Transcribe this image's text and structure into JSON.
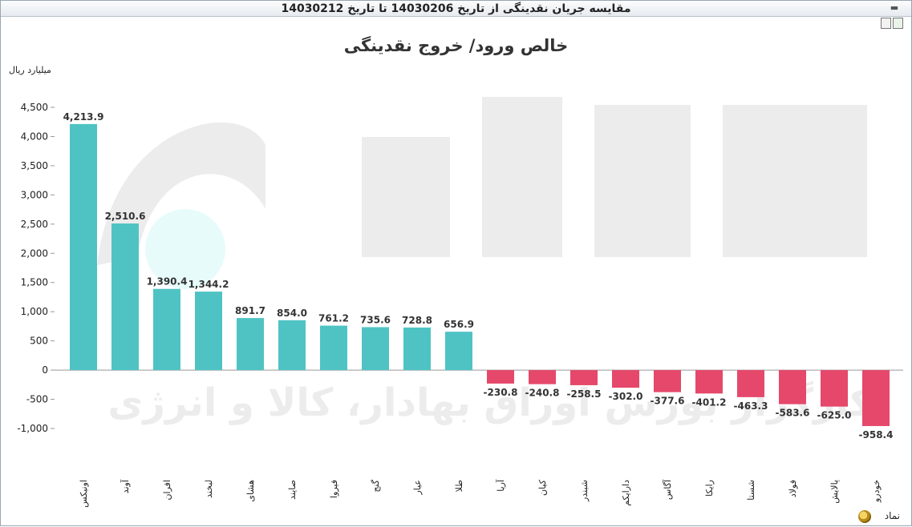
{
  "window": {
    "title": "مقایسه جریان نقدینگی از تاریخ 14030206 تا تاریخ 14030212",
    "toolbar_icons": [
      "print-icon",
      "excel-export-icon"
    ],
    "controls": [
      "minimize-icon"
    ]
  },
  "footer": {
    "label": "نماد",
    "icon": "symbol-search-icon"
  },
  "colors": {
    "positive": "#4fc3c4",
    "negative": "#e5486a",
    "zero_line": "#999999",
    "watermark": "#ececec"
  },
  "chart_data": {
    "type": "bar",
    "title": "خالص ورود/ خروج نقدینگی",
    "ylabel": "میلیارد ریال",
    "xlabel": "",
    "ylim": [
      -1000,
      4500
    ],
    "yticks": [
      {
        "value": 4500,
        "label": "4,500"
      },
      {
        "value": 4000,
        "label": "4,000"
      },
      {
        "value": 3500,
        "label": "3,500"
      },
      {
        "value": 3000,
        "label": "3,000"
      },
      {
        "value": 2500,
        "label": "2,500"
      },
      {
        "value": 2000,
        "label": "2,000"
      },
      {
        "value": 1500,
        "label": "1,500"
      },
      {
        "value": 1000,
        "label": "1,000"
      },
      {
        "value": 500,
        "label": "500"
      },
      {
        "value": 0,
        "label": "0"
      },
      {
        "value": -500,
        "label": "-500"
      },
      {
        "value": -1000,
        "label": "-1,000"
      }
    ],
    "grid": false,
    "categories": [
      "اونیکس",
      "آوند",
      "افران",
      "لبخند",
      "هشای",
      "صایند",
      "فیروا",
      "گنج",
      "عیار",
      "طلا",
      "آریا",
      "کیان",
      "شبندر",
      "دارایکم",
      "آگاس",
      "رایکا",
      "شستا",
      "فولاد",
      "پالایش",
      "خودرو"
    ],
    "values": [
      4213.9,
      2510.6,
      1390.4,
      1344.2,
      891.7,
      854.0,
      761.2,
      735.6,
      728.8,
      656.9,
      -230.8,
      -240.8,
      -258.5,
      -302.0,
      -377.6,
      -401.2,
      -463.3,
      -583.6,
      -625.0,
      -958.4
    ],
    "value_labels": [
      "4,213.9",
      "2,510.6",
      "1,390.4",
      "1,344.2",
      "891.7",
      "854.0",
      "761.2",
      "735.6",
      "728.8",
      "656.9",
      "-230.8",
      "-240.8",
      "-258.5",
      "-302.0",
      "-377.6",
      "-401.2",
      "-463.3",
      "-583.6",
      "-625.0",
      "-958.4"
    ],
    "watermark": "کارگزار بورس اوراق بهادار، کالا و انرژی"
  }
}
